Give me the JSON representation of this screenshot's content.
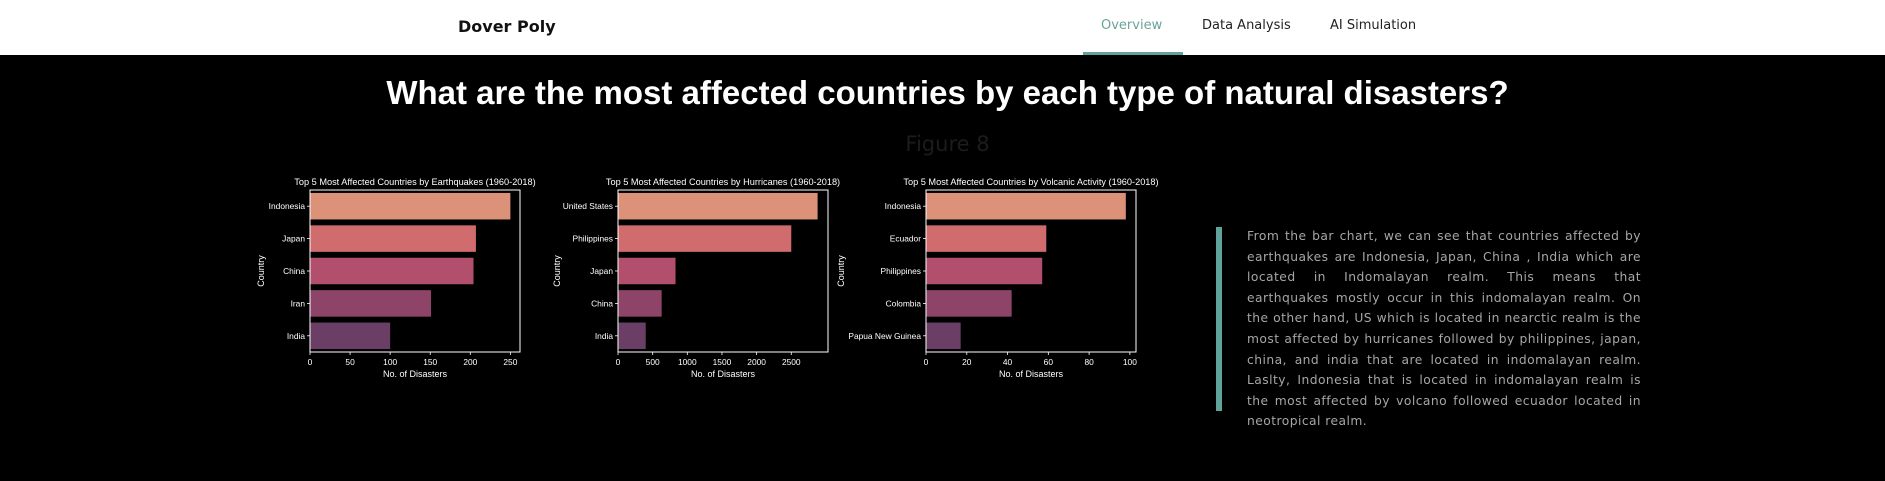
{
  "navbar": {
    "brand": "Dover Poly",
    "items": [
      {
        "label": "Overview",
        "active": true
      },
      {
        "label": "Data Analysis",
        "active": false
      },
      {
        "label": "AI Simulation",
        "active": false
      }
    ]
  },
  "page": {
    "title": "What are the most affected countries by each type of natural disasters?",
    "figure_caption": "Figure 8"
  },
  "description": "From the bar chart, we can see that countries affected by earthquakes are Indonesia, Japan, China , India which are located in Indomalayan realm. This means that earthquakes mostly occur in this indomalayan realm. On the other hand, US which is located in nearctic realm is the most affected by hurricanes followed by philippines, japan, china, and india that are located in indomalayan realm. Laslty, Indonesia that is located in indomalayan realm is the most affected by volcano followed ecuador located in neotropical realm.",
  "colors": {
    "accent": "#5fa39b",
    "background": "#000000",
    "bars": [
      "#dc9278",
      "#d06c6d",
      "#b24f6c",
      "#8e4468",
      "#6b3e66"
    ]
  },
  "chart_data": [
    {
      "type": "bar",
      "orientation": "horizontal",
      "title": "Top 5 Most Affected Countries by Earthquakes (1960-2018)",
      "xlabel": "No. of Disasters",
      "ylabel": "Country",
      "categories": [
        "Indonesia",
        "Japan",
        "China",
        "Iran",
        "India"
      ],
      "values": [
        250,
        207,
        204,
        151,
        100
      ],
      "xlim": [
        0,
        262
      ],
      "xticks": [
        0,
        50,
        100,
        150,
        200,
        250
      ],
      "grid": false
    },
    {
      "type": "bar",
      "orientation": "horizontal",
      "title": "Top 5 Most Affected Countries by Hurricanes (1960-2018)",
      "xlabel": "No. of Disasters",
      "ylabel": "Country",
      "categories": [
        "United States",
        "Philippines",
        "Japan",
        "China",
        "India"
      ],
      "values": [
        2880,
        2500,
        830,
        630,
        400
      ],
      "xlim": [
        0,
        3030
      ],
      "xticks": [
        0,
        500,
        1000,
        1500,
        2000,
        2500
      ],
      "grid": false
    },
    {
      "type": "bar",
      "orientation": "horizontal",
      "title": "Top 5 Most Affected Countries by Volcanic Activity (1960-2018)",
      "xlabel": "No. of Disasters",
      "ylabel": "Country",
      "categories": [
        "Indonesia",
        "Ecuador",
        "Philippines",
        "Colombia",
        "Papua New Guinea"
      ],
      "values": [
        98,
        59,
        57,
        42,
        17
      ],
      "xlim": [
        0,
        103
      ],
      "xticks": [
        0,
        20,
        40,
        60,
        80,
        100
      ],
      "grid": false
    }
  ]
}
